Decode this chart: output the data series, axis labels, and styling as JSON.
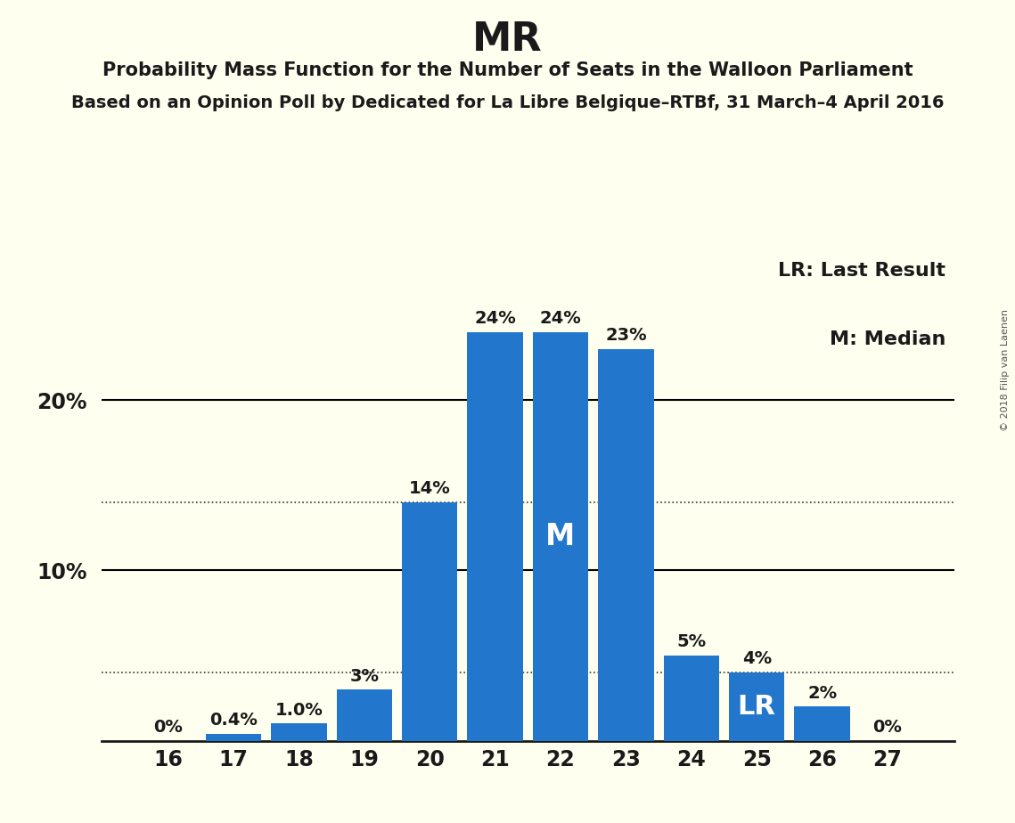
{
  "title": "MR",
  "subtitle1": "Probability Mass Function for the Number of Seats in the Walloon Parliament",
  "subtitle2": "Based on an Opinion Poll by Dedicated for La Libre Belgique–RTBf, 31 March–4 April 2016",
  "watermark": "© 2018 Filip van Laenen",
  "categories": [
    16,
    17,
    18,
    19,
    20,
    21,
    22,
    23,
    24,
    25,
    26,
    27
  ],
  "values": [
    0.0,
    0.4,
    1.0,
    3.0,
    14.0,
    24.0,
    24.0,
    23.0,
    5.0,
    4.0,
    2.0,
    0.0
  ],
  "labels": [
    "0%",
    "0.4%",
    "1.0%",
    "3%",
    "14%",
    "24%",
    "24%",
    "23%",
    "5%",
    "4%",
    "2%",
    "0%"
  ],
  "bar_color": "#2277CC",
  "background_color": "#FFFFF0",
  "label_color_default": "#1a1a1a",
  "median_seat": 22,
  "lr_seat": 25,
  "lr_label": "LR",
  "median_label": "M",
  "legend_lr": "LR: Last Result",
  "legend_m": "M: Median",
  "ylim": [
    0,
    29
  ],
  "solid_gridlines": [
    10,
    20
  ],
  "dotted_gridlines": [
    14.0,
    4.0
  ]
}
